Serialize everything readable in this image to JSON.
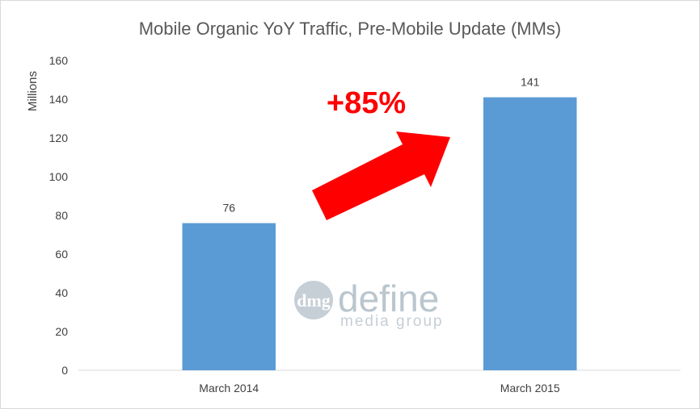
{
  "chart_data": {
    "type": "bar",
    "title": "Mobile Organic YoY Traffic, Pre-Mobile Update (MMs)",
    "ylabel": "Millions",
    "xlabel": "",
    "categories": [
      "March 2014",
      "March 2015"
    ],
    "values": [
      76,
      141
    ],
    "data_labels": [
      "76",
      "141"
    ],
    "ylim": [
      0,
      160
    ],
    "yticks": [
      0,
      20,
      40,
      60,
      80,
      100,
      120,
      140,
      160
    ],
    "grid": false,
    "legend": "none",
    "bar_color": "#5b9bd5",
    "annotation": {
      "text": "+85%",
      "color": "#ff0000"
    },
    "watermark": {
      "logo_mark": "dmg",
      "name": "define",
      "tagline": "media group"
    }
  }
}
